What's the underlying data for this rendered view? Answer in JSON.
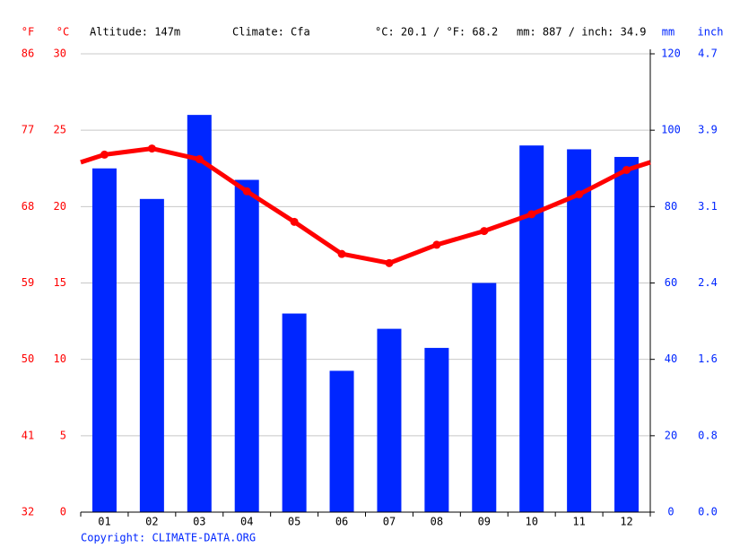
{
  "chart_data": {
    "type": "bar-line",
    "header": [
      "Altitude: 147m",
      "Climate: Cfa",
      "°C: 20.1 / °F: 68.2",
      "mm: 887 / inch: 34.9"
    ],
    "left_units": [
      "°F",
      "°C"
    ],
    "right_units": [
      "mm",
      "inch"
    ],
    "copyright": "Copyright: CLIMATE-DATA.ORG",
    "categories": [
      "01",
      "02",
      "03",
      "04",
      "05",
      "06",
      "07",
      "08",
      "09",
      "10",
      "11",
      "12"
    ],
    "series": [
      {
        "name": "mm",
        "type": "bar",
        "axis": "y2",
        "color": "#0026ff",
        "values": [
          90,
          82,
          104,
          87,
          52,
          37,
          48,
          43,
          60,
          96,
          95,
          93
        ]
      },
      {
        "name": "°C",
        "type": "line",
        "color": "#ff0000",
        "values": [
          23.4,
          23.8,
          23.1,
          21.0,
          19.0,
          16.9,
          16.3,
          17.5,
          18.4,
          19.5,
          20.8,
          22.4
        ]
      }
    ],
    "ylim": [
      0,
      30
    ],
    "yticks": [
      0,
      5,
      10,
      15,
      20,
      25,
      30
    ],
    "fticks": [
      {
        "value": 0,
        "label": "32"
      },
      {
        "value": 5,
        "label": "41"
      },
      {
        "value": 10,
        "label": "50"
      },
      {
        "value": 15,
        "label": "59"
      },
      {
        "value": 20,
        "label": "68"
      },
      {
        "value": 25,
        "label": "77"
      },
      {
        "value": 30,
        "label": "86"
      }
    ],
    "y2lim": [
      0,
      120
    ],
    "y2ticks": [
      0,
      20,
      40,
      60,
      80,
      100,
      120
    ],
    "inchticks": [
      {
        "value": 0,
        "label": "0.0"
      },
      {
        "value": 20,
        "label": "0.8"
      },
      {
        "value": 40,
        "label": "1.6"
      },
      {
        "value": 60,
        "label": "2.4"
      },
      {
        "value": 80,
        "label": "3.1"
      },
      {
        "value": 100,
        "label": "3.9"
      },
      {
        "value": 120,
        "label": "4.7"
      }
    ],
    "grid": true,
    "left_color": "#ff0000",
    "right_color": "#0026ff"
  }
}
